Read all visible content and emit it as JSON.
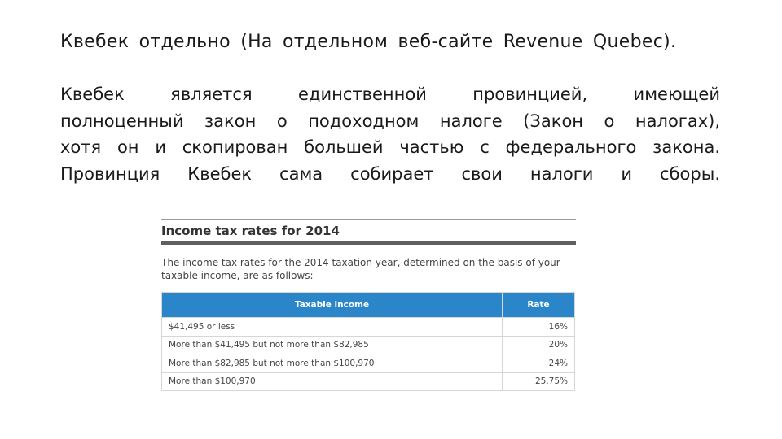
{
  "slide": {
    "title": "Квебек отдельно (На отдельном веб-сайте Revenue Quebec).",
    "body_lines": [
      "Квебек является единственной провинцией, имеющей",
      "полноценный закон о подоходном налоге (Закон о налогах),",
      "хотя он и скопирован большей частью с федерального закона.",
      "Провинция Квебек сама собирает свои налоги и сборы."
    ]
  },
  "embedded": {
    "heading": "Income tax rates for 2014",
    "intro": "The income tax rates for the 2014 taxation year, determined on the basis of your taxable income, are as follows:",
    "table": {
      "headers": [
        "Taxable income",
        "Rate"
      ],
      "rows": [
        [
          "$41,495 or less",
          "16%"
        ],
        [
          "More than $41,495 but not more than $82,985",
          "20%"
        ],
        [
          "More than $82,985 but not more than $100,970",
          "24%"
        ],
        [
          "More than $100,970",
          "25.75%"
        ]
      ]
    }
  },
  "colors": {
    "table_header_bg": "#2a86c9",
    "heading_rule": "#5f5f5f"
  }
}
